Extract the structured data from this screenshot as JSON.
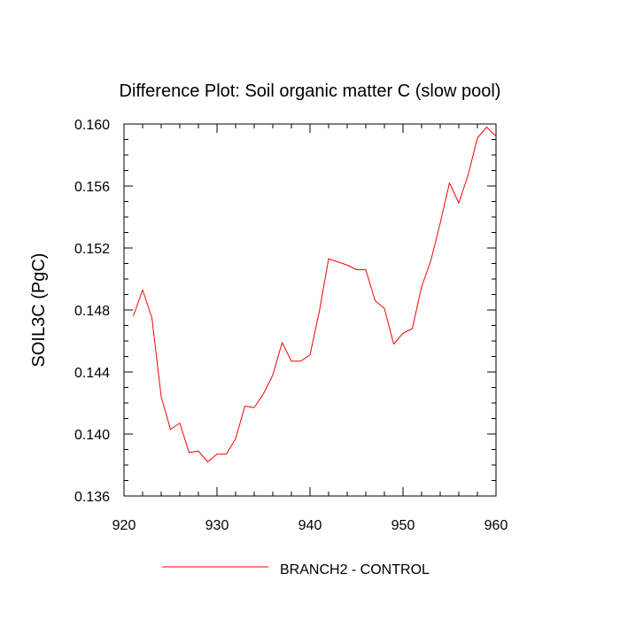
{
  "chart_data": {
    "type": "line",
    "title": "Difference Plot: Soil organic matter C (slow pool)",
    "xlabel": "",
    "ylabel": "SOIL3C  (PgC)",
    "xlim": [
      920,
      960
    ],
    "ylim": [
      0.136,
      0.16
    ],
    "x_ticks": [
      "920",
      "930",
      "940",
      "950",
      "960"
    ],
    "y_ticks": [
      "0.136",
      "0.140",
      "0.144",
      "0.148",
      "0.152",
      "0.156",
      "0.160"
    ],
    "grid": false,
    "legend_position": "bottom",
    "series": [
      {
        "name": "BRANCH2 - CONTROL",
        "color": "#ff0000",
        "x": [
          921,
          922,
          923,
          924,
          925,
          926,
          927,
          928,
          929,
          930,
          931,
          932,
          933,
          934,
          935,
          936,
          937,
          938,
          939,
          940,
          941,
          942,
          943,
          944,
          945,
          946,
          947,
          948,
          949,
          950,
          951,
          952,
          953,
          954,
          955,
          956,
          957,
          958,
          959,
          960
        ],
        "values": [
          0.1476,
          0.1493,
          0.1475,
          0.1424,
          0.1403,
          0.1407,
          0.1388,
          0.1389,
          0.1382,
          0.1387,
          0.1387,
          0.1397,
          0.1418,
          0.1417,
          0.1426,
          0.1438,
          0.1459,
          0.1447,
          0.1447,
          0.1451,
          0.1479,
          0.1513,
          0.1511,
          0.1509,
          0.1506,
          0.1506,
          0.1486,
          0.1481,
          0.1458,
          0.1465,
          0.1468,
          0.1495,
          0.1512,
          0.1536,
          0.1562,
          0.1549,
          0.1567,
          0.1591,
          0.1598,
          0.1592
        ]
      }
    ]
  }
}
